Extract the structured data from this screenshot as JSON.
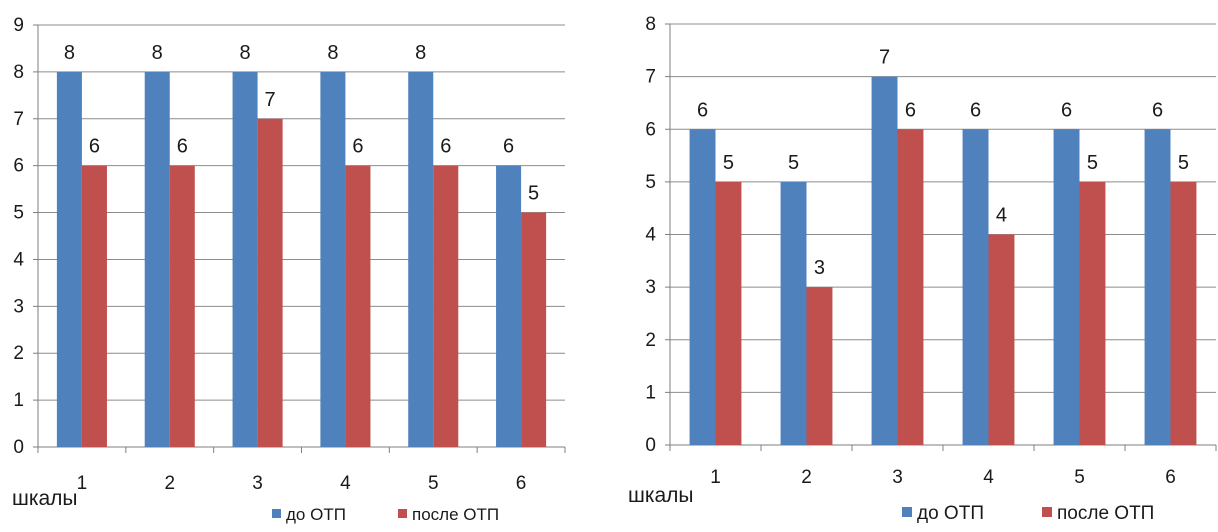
{
  "chart_data": [
    {
      "type": "bar",
      "categories": [
        "1",
        "2",
        "3",
        "4",
        "5",
        "6"
      ],
      "series": [
        {
          "name": "до ОТП",
          "values": [
            8,
            8,
            8,
            8,
            8,
            6
          ],
          "color": "#4f81bd"
        },
        {
          "name": "после ОТП",
          "values": [
            6,
            6,
            7,
            6,
            6,
            5
          ],
          "color": "#c0504d"
        }
      ],
      "xlabel": "шкалы",
      "ylim": [
        0,
        9
      ],
      "yticks": [
        0,
        1,
        2,
        3,
        4,
        5,
        6,
        7,
        8,
        9
      ],
      "grid": true,
      "legend": "bottom",
      "data_labels": true
    },
    {
      "type": "bar",
      "categories": [
        "1",
        "2",
        "3",
        "4",
        "5",
        "6"
      ],
      "series": [
        {
          "name": "до ОТП",
          "values": [
            6,
            5,
            7,
            6,
            6,
            6
          ],
          "color": "#4f81bd"
        },
        {
          "name": "после ОТП",
          "values": [
            5,
            3,
            6,
            4,
            5,
            5
          ],
          "color": "#c0504d"
        }
      ],
      "xlabel": "шкалы",
      "ylim": [
        0,
        8
      ],
      "yticks": [
        0,
        1,
        2,
        3,
        4,
        5,
        6,
        7,
        8
      ],
      "grid": true,
      "legend": "bottom",
      "data_labels": true
    }
  ]
}
